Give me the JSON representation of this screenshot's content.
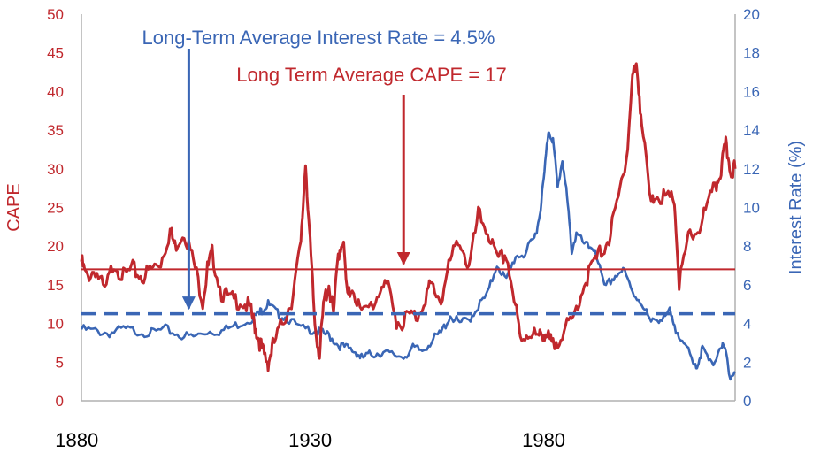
{
  "chart_data": {
    "type": "line",
    "title": "",
    "xlabel": "",
    "ylabel": "CAPE",
    "y2label": "Interest Rate (%)",
    "xlim": [
      1881,
      2021
    ],
    "ylim": [
      0,
      50
    ],
    "y2lim": [
      0,
      20
    ],
    "x_ticks": [
      1880,
      1930,
      1980
    ],
    "y_ticks": [
      0,
      5,
      10,
      15,
      20,
      25,
      30,
      35,
      40,
      45,
      50
    ],
    "y2_ticks": [
      0,
      2,
      4,
      6,
      8,
      10,
      12,
      14,
      16,
      18,
      20
    ],
    "grid": false,
    "colors": {
      "cape": "#c0282d",
      "rate": "#3a66b5",
      "axis": "#b0b0b0"
    },
    "series": [
      {
        "axis": "left",
        "x": [
          1881,
          1882,
          1884,
          1886,
          1888,
          1890,
          1892,
          1894,
          1896,
          1898,
          1900,
          1901,
          1903,
          1905,
          1907,
          1908,
          1909,
          1911,
          1913,
          1915,
          1917,
          1918,
          1919,
          1920,
          1921,
          1922,
          1924,
          1926,
          1928,
          1929,
          1930,
          1931,
          1932,
          1933,
          1934,
          1935,
          1936,
          1937,
          1938,
          1939,
          1941,
          1944,
          1946,
          1948,
          1949,
          1951,
          1953,
          1955,
          1956,
          1958,
          1960,
          1962,
          1964,
          1966,
          1968,
          1970,
          1972,
          1974,
          1975,
          1977,
          1979,
          1980,
          1981,
          1982,
          1984,
          1986,
          1988,
          1990,
          1992,
          1994,
          1996,
          1998,
          1999,
          2000,
          2001,
          2003,
          2004,
          2006,
          2008,
          2009,
          2011,
          2013,
          2015,
          2017,
          2018,
          2019,
          2020,
          2021
        ],
        "values": [
          18,
          16,
          17,
          14,
          18,
          16,
          17,
          16,
          17,
          18,
          22,
          20,
          22,
          18,
          13,
          17,
          19,
          14,
          13,
          13,
          12,
          10,
          8,
          6,
          5,
          7,
          10,
          13,
          20,
          31,
          20,
          10,
          6,
          13,
          15,
          11,
          19,
          21,
          13,
          15,
          11,
          13,
          16,
          11,
          10,
          11,
          11,
          14,
          15,
          13,
          18,
          21,
          17,
          24,
          22,
          18,
          19,
          12,
          8,
          9,
          8,
          9,
          8,
          7,
          9,
          10,
          14,
          17,
          19,
          21,
          26,
          33,
          42,
          43,
          36,
          25,
          27,
          26,
          26,
          15,
          21,
          22,
          25,
          28,
          30,
          33,
          30,
          30
        ]
      },
      {
        "axis": "right",
        "x": [
          1881,
          1884,
          1887,
          1890,
          1893,
          1896,
          1899,
          1902,
          1905,
          1908,
          1911,
          1914,
          1917,
          1919,
          1920,
          1921,
          1923,
          1925,
          1928,
          1931,
          1932,
          1934,
          1936,
          1938,
          1940,
          1941,
          1943,
          1945,
          1947,
          1950,
          1952,
          1954,
          1956,
          1958,
          1960,
          1962,
          1964,
          1966,
          1968,
          1970,
          1972,
          1974,
          1976,
          1978,
          1979,
          1980,
          1981,
          1982,
          1983,
          1984,
          1985,
          1986,
          1987,
          1989,
          1991,
          1993,
          1995,
          1997,
          1999,
          2001,
          2003,
          2005,
          2007,
          2008,
          2010,
          2012,
          2013,
          2014,
          2016,
          2018,
          2019,
          2020,
          2021
        ],
        "values": [
          3.7,
          3.6,
          3.5,
          3.7,
          3.6,
          3.5,
          3.7,
          3.4,
          3.3,
          3.6,
          3.6,
          3.9,
          4.2,
          4.5,
          4.8,
          5.0,
          4.5,
          4.3,
          3.7,
          3.7,
          3.5,
          3.4,
          2.9,
          2.7,
          2.5,
          2.2,
          2.4,
          2.5,
          2.4,
          2.3,
          2.7,
          2.6,
          3.1,
          3.5,
          4.4,
          4.0,
          4.2,
          4.9,
          5.5,
          7.1,
          6.2,
          7.5,
          7.6,
          8.4,
          9.4,
          11.4,
          14.0,
          13.5,
          11.0,
          12.5,
          10.5,
          7.8,
          8.6,
          8.0,
          7.9,
          5.8,
          6.4,
          6.8,
          5.6,
          5.1,
          4.0,
          4.3,
          4.6,
          3.7,
          3.2,
          1.8,
          1.9,
          2.7,
          1.8,
          2.9,
          2.5,
          1.2,
          1.5
        ]
      }
    ],
    "reference_lines": [
      {
        "axis": "left",
        "value": 17,
        "style": "solid"
      },
      {
        "axis": "right",
        "value": 4.5,
        "style": "dashed"
      }
    ],
    "annotations": [
      {
        "text": "Long-Term Average Interest Rate = 4.5%",
        "color": "blue",
        "arrow_x": 1904,
        "arrow_to": 4.5,
        "arrow_axis": "right"
      },
      {
        "text": "Long Term Average CAPE = 17",
        "color": "red",
        "arrow_x": 1950,
        "arrow_to": 17,
        "arrow_axis": "left"
      }
    ]
  }
}
